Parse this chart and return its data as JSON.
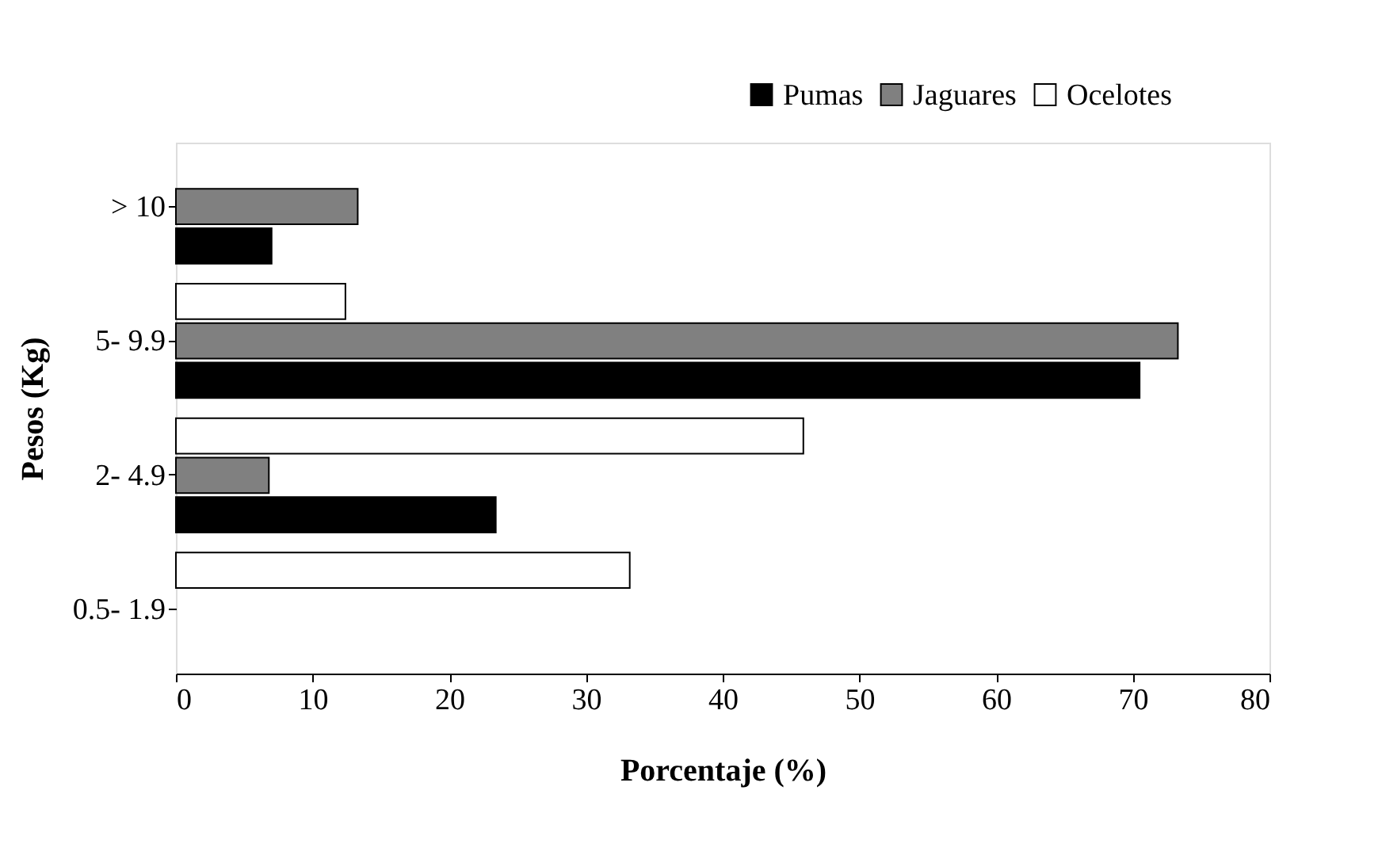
{
  "chart_data": {
    "type": "bar",
    "orientation": "horizontal",
    "xlabel": "Porcentaje (%)",
    "ylabel": "Pesos (Kg)",
    "categories": [
      "> 10",
      "5- 9.9",
      "2- 4.9",
      "0.5- 1.9"
    ],
    "series": [
      {
        "name": "Pumas",
        "color": "#000000",
        "values": [
          7.0,
          70.5,
          23.4,
          null
        ]
      },
      {
        "name": "Jaguares",
        "color": "#808080",
        "values": [
          13.3,
          73.3,
          6.8,
          null
        ]
      },
      {
        "name": "Ocelotes",
        "color": "#ffffff",
        "values": [
          null,
          12.4,
          45.9,
          33.2
        ]
      }
    ],
    "xlim": [
      0,
      80
    ],
    "xticks": [
      0,
      10,
      20,
      30,
      40,
      50,
      60,
      70,
      80
    ],
    "grid": false,
    "legend": "top right"
  }
}
